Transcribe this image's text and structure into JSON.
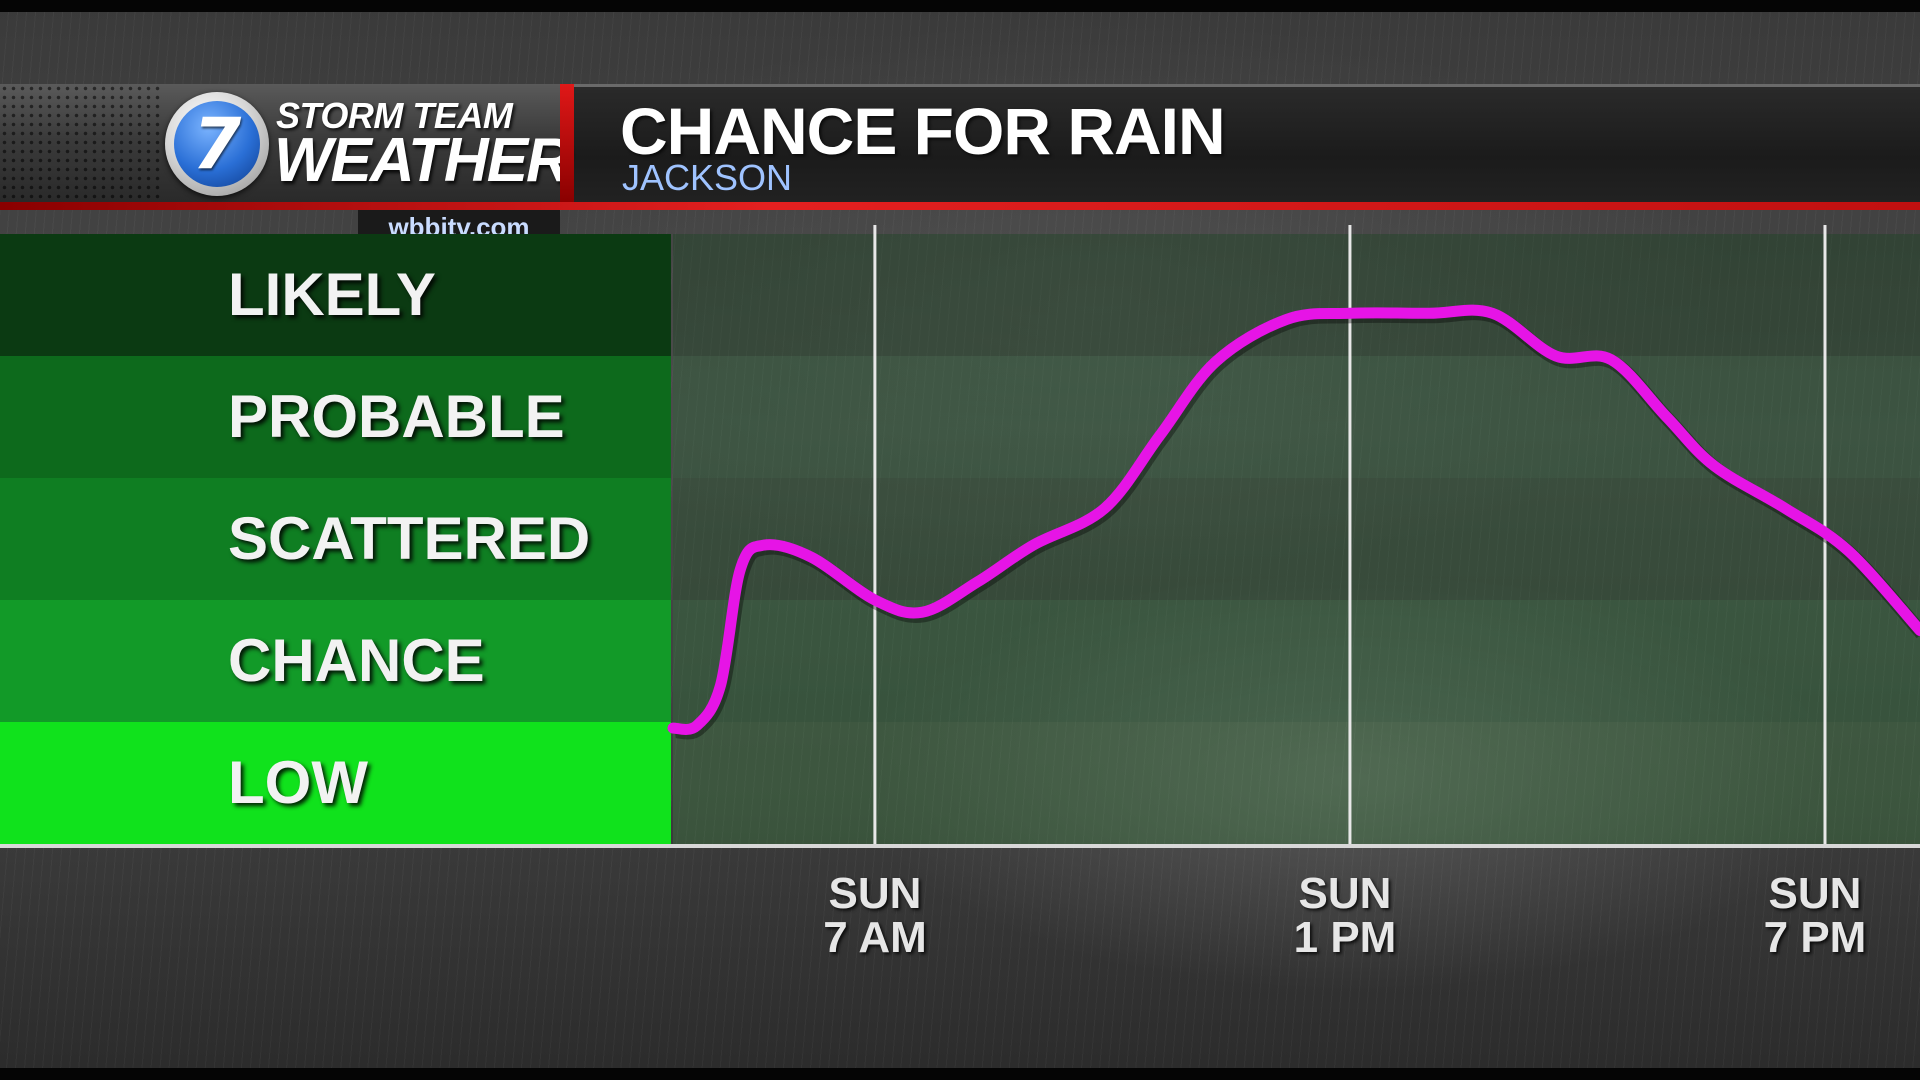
{
  "header": {
    "logo_number": "7",
    "logo_line1": "STORM TEAM",
    "logo_line2": "WEATHER",
    "website": "wbbjtv.com",
    "title": "CHANCE FOR RAIN",
    "location": "JACKSON"
  },
  "colors": {
    "line": "#e614e6",
    "header_red": "#e42020",
    "band_likely": "#0b3a12",
    "band_probable": "#0d6a1c",
    "band_scattered": "#0f7e22",
    "band_chance": "#129a28",
    "band_low": "#10e21c"
  },
  "chart_data": {
    "type": "line",
    "title": "CHANCE FOR RAIN",
    "subtitle": "JACKSON",
    "y_categories": [
      "LOW",
      "CHANCE",
      "SCATTERED",
      "PROBABLE",
      "LIKELY"
    ],
    "ylim": [
      0,
      5
    ],
    "x_ticks": [
      {
        "day": "SUN",
        "time": "7 AM",
        "hour": 7
      },
      {
        "day": "SUN",
        "time": "1 PM",
        "hour": 13
      },
      {
        "day": "SUN",
        "time": "7 PM",
        "hour": 19
      }
    ],
    "xlim": [
      4.45,
      20.2
    ],
    "series": [
      {
        "points": [
          [
            4.45,
            0.95
          ],
          [
            4.75,
            0.97
          ],
          [
            5.05,
            1.3
          ],
          [
            5.3,
            2.25
          ],
          [
            5.6,
            2.45
          ],
          [
            6.2,
            2.35
          ],
          [
            7.0,
            2.0
          ],
          [
            7.6,
            1.9
          ],
          [
            8.3,
            2.15
          ],
          [
            9.0,
            2.45
          ],
          [
            9.9,
            2.75
          ],
          [
            10.6,
            3.35
          ],
          [
            11.3,
            3.95
          ],
          [
            12.2,
            4.3
          ],
          [
            13.0,
            4.35
          ],
          [
            14.0,
            4.35
          ],
          [
            14.8,
            4.35
          ],
          [
            15.6,
            4.0
          ],
          [
            16.3,
            3.97
          ],
          [
            17.0,
            3.5
          ],
          [
            17.6,
            3.1
          ],
          [
            18.5,
            2.75
          ],
          [
            19.3,
            2.4
          ],
          [
            20.2,
            1.75
          ]
        ]
      }
    ],
    "grid": "vertical lines at ticks"
  }
}
